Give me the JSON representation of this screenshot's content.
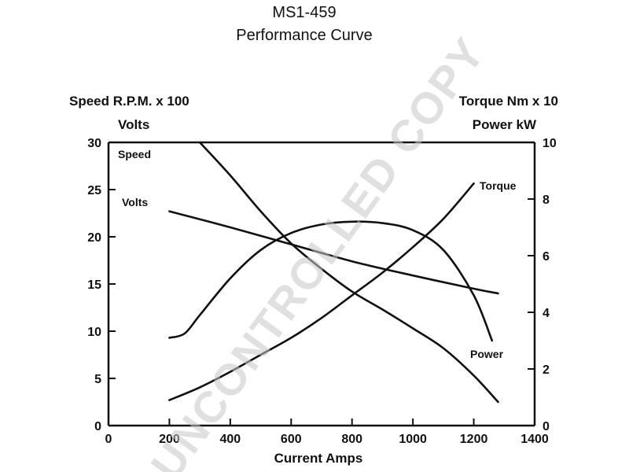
{
  "chart_data": {
    "type": "line",
    "title": "MS1-459",
    "subtitle": "Performance Curve",
    "xlabel": "Current Amps",
    "ylabel_left_line1": "Speed R.P.M. x 100",
    "ylabel_left_line2": "Volts",
    "ylabel_right_line1": "Torque Nm x 10",
    "ylabel_right_line2": "Power kW",
    "xlim": [
      0,
      1400
    ],
    "ylim_left": [
      0,
      30
    ],
    "ylim_right": [
      0,
      10
    ],
    "x_ticks": [
      "0",
      "200",
      "400",
      "600",
      "800",
      "1000",
      "1200",
      "1400"
    ],
    "y_left_ticks": [
      "0",
      "5",
      "10",
      "15",
      "20",
      "25",
      "30"
    ],
    "y_right_ticks": [
      "0",
      "2",
      "4",
      "6",
      "8",
      "10"
    ],
    "grid": false,
    "series": [
      {
        "name": "Speed",
        "axis": "left",
        "x": [
          300,
          400,
          500,
          600,
          700,
          800,
          900,
          1000,
          1100,
          1200,
          1280
        ],
        "y": [
          30,
          26.5,
          22.7,
          19.3,
          16.6,
          14.2,
          12.3,
          10.3,
          8.2,
          5.3,
          2.5
        ]
      },
      {
        "name": "Volts",
        "axis": "left",
        "x": [
          200,
          400,
          600,
          800,
          1000,
          1200,
          1280
        ],
        "y": [
          22.7,
          21,
          19.2,
          17.4,
          15.9,
          14.5,
          14
        ]
      },
      {
        "name": "Torque",
        "axis": "right",
        "x": [
          200,
          300,
          400,
          500,
          600,
          700,
          800,
          900,
          1000,
          1100,
          1200
        ],
        "y": [
          0.9,
          1.35,
          1.9,
          2.5,
          3.1,
          3.8,
          4.6,
          5.4,
          6.3,
          7.3,
          8.55
        ]
      },
      {
        "name": "Power",
        "axis": "right",
        "x": [
          200,
          250,
          300,
          400,
          500,
          600,
          700,
          800,
          900,
          1000,
          1100,
          1200,
          1260
        ],
        "y": [
          3.1,
          3.25,
          3.9,
          5.2,
          6.2,
          6.8,
          7.1,
          7.2,
          7.15,
          6.9,
          6.2,
          4.6,
          3.0
        ]
      }
    ],
    "watermark": "UNCONTROLLED COPY"
  }
}
